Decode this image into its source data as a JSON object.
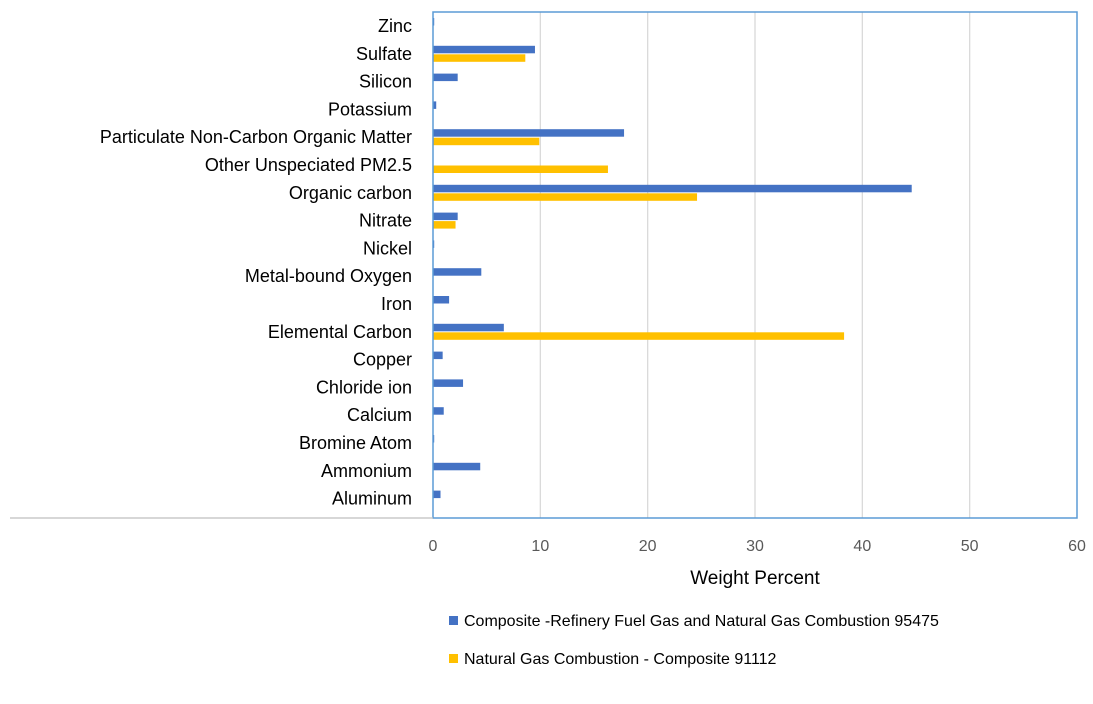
{
  "chart_data": {
    "type": "bar",
    "orientation": "horizontal",
    "title": "",
    "xlabel": "Weight Percent",
    "ylabel": "",
    "xlim": [
      0,
      60
    ],
    "xticks": [
      0,
      10,
      20,
      30,
      40,
      50,
      60
    ],
    "grid": "vertical",
    "legend_position": "bottom",
    "categories": [
      "Zinc",
      "Sulfate",
      "Silicon",
      "Potassium",
      "Particulate Non-Carbon Organic Matter",
      "Other Unspeciated PM2.5",
      "Organic carbon",
      "Nitrate",
      "Nickel",
      "Metal-bound Oxygen",
      "Iron",
      "Elemental Carbon",
      "Copper",
      "Chloride ion",
      "Calcium",
      "Bromine Atom",
      "Ammonium",
      "Aluminum"
    ],
    "series": [
      {
        "name": "Composite -Refinery Fuel Gas and Natural Gas Combustion 95475",
        "color": "#4472C4",
        "values": [
          0.05,
          9.5,
          2.3,
          0.3,
          17.8,
          0,
          44.6,
          2.3,
          0.05,
          4.5,
          1.5,
          6.6,
          0.9,
          2.8,
          1.0,
          0.05,
          4.4,
          0.7
        ]
      },
      {
        "name": "Natural Gas Combustion - Composite 91112",
        "color": "#FFC000",
        "values": [
          0,
          8.6,
          0,
          0,
          9.9,
          16.3,
          24.6,
          2.1,
          0,
          0,
          0,
          38.3,
          0,
          0,
          0,
          0,
          0,
          0
        ]
      }
    ]
  },
  "colors": {
    "plot_border": "#5B9BD5",
    "gridline": "#D9D9D9",
    "axis_line": "#BFBFBF"
  }
}
